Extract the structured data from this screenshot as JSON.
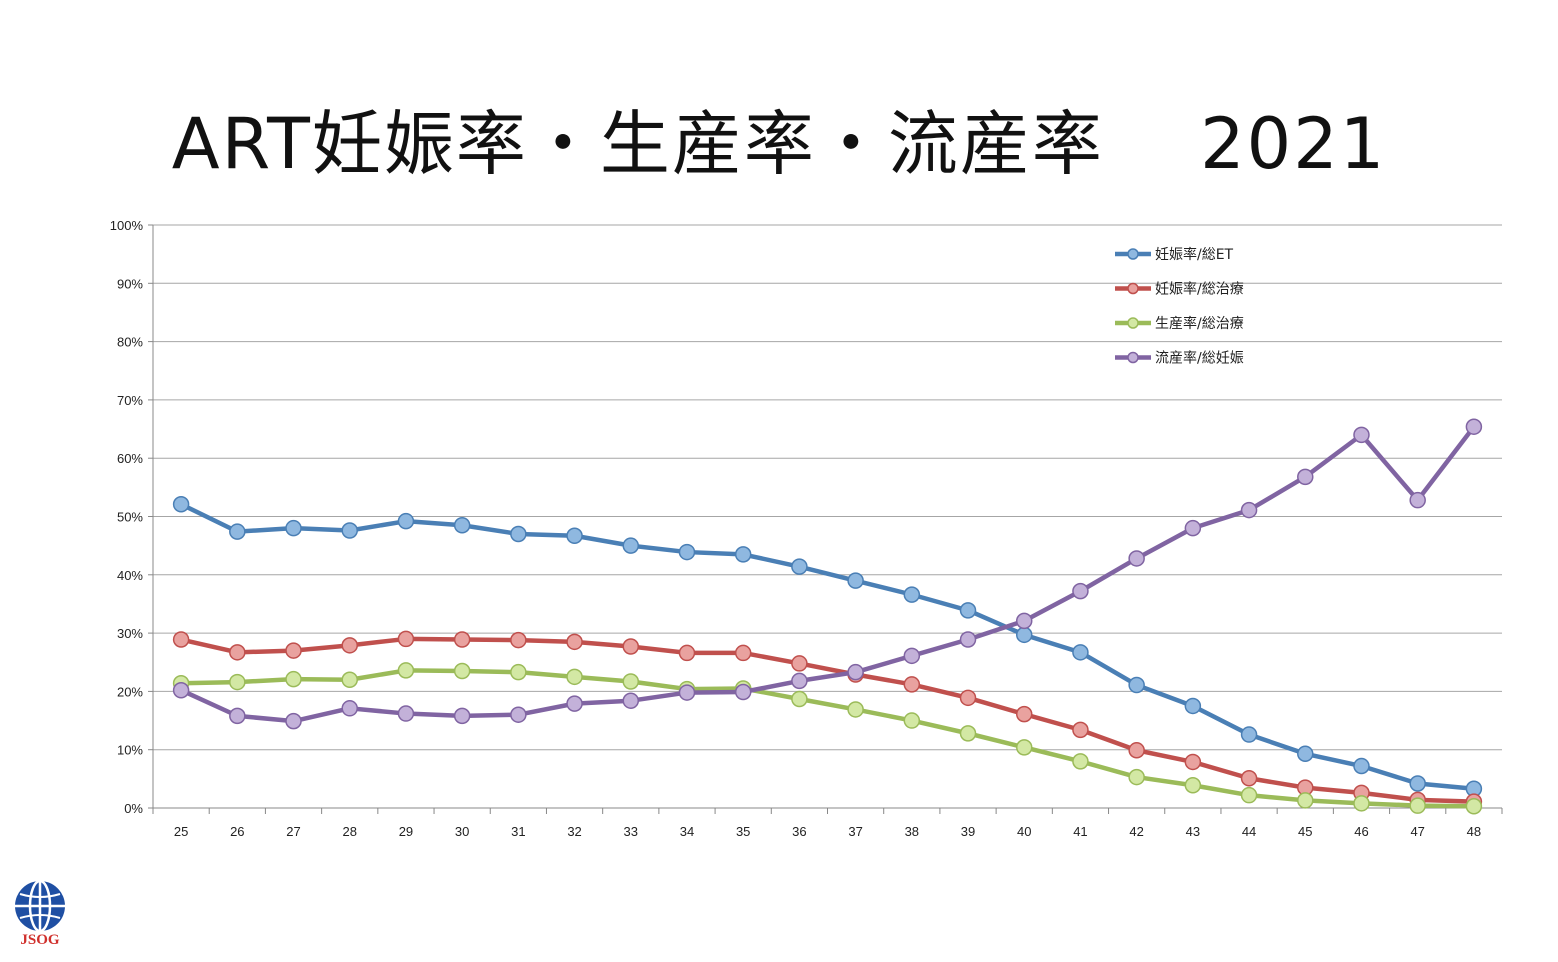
{
  "title": "ART妊娠率・生産率・流産率　 2021",
  "logo": {
    "text": "JSOG",
    "color": "#1f4fa3"
  },
  "chart_data": {
    "type": "line",
    "title": "",
    "xlabel": "",
    "ylabel": "",
    "ylim": [
      0,
      100
    ],
    "y_ticks": [
      "0%",
      "10%",
      "20%",
      "30%",
      "40%",
      "50%",
      "60%",
      "70%",
      "80%",
      "90%",
      "100%"
    ],
    "x": [
      "25",
      "26",
      "27",
      "28",
      "29",
      "30",
      "31",
      "32",
      "33",
      "34",
      "35",
      "36",
      "37",
      "38",
      "39",
      "40",
      "41",
      "42",
      "43",
      "44",
      "45",
      "46",
      "47",
      "48"
    ],
    "grid": true,
    "legend_position": "top-right",
    "series": [
      {
        "name": "妊娠率/総ET",
        "color": "#4a7fb5",
        "marker": "#8fb8e0",
        "values": [
          52.1,
          47.4,
          48.0,
          47.6,
          49.2,
          48.5,
          47.0,
          46.7,
          45.0,
          43.9,
          43.5,
          41.4,
          39.0,
          36.6,
          33.9,
          29.7,
          26.7,
          21.1,
          17.5,
          12.6,
          9.3,
          7.2,
          4.2,
          3.3
        ]
      },
      {
        "name": "妊娠率/総治療",
        "color": "#c0504d",
        "marker": "#e9a29f",
        "values": [
          28.9,
          26.7,
          27.0,
          27.9,
          29.0,
          28.9,
          28.8,
          28.5,
          27.7,
          26.6,
          26.6,
          24.8,
          22.9,
          21.2,
          18.9,
          16.1,
          13.4,
          9.9,
          7.9,
          5.1,
          3.5,
          2.6,
          1.4,
          1.1
        ]
      },
      {
        "name": "生産率/総治療",
        "color": "#9bbb59",
        "marker": "#d3e8a4",
        "values": [
          21.4,
          21.6,
          22.1,
          22.0,
          23.6,
          23.5,
          23.3,
          22.5,
          21.7,
          20.4,
          20.5,
          18.7,
          16.9,
          15.0,
          12.8,
          10.4,
          8.0,
          5.3,
          3.9,
          2.2,
          1.3,
          0.8,
          0.4,
          0.3
        ]
      },
      {
        "name": "流産率/総妊娠",
        "color": "#8064a2",
        "marker": "#c3b1d9",
        "values": [
          20.2,
          15.8,
          14.9,
          17.1,
          16.2,
          15.8,
          16.0,
          17.9,
          18.4,
          19.8,
          19.9,
          21.8,
          23.3,
          26.1,
          28.9,
          32.1,
          37.2,
          42.8,
          48.0,
          51.1,
          56.8,
          64.0,
          52.8,
          65.4
        ]
      }
    ]
  }
}
